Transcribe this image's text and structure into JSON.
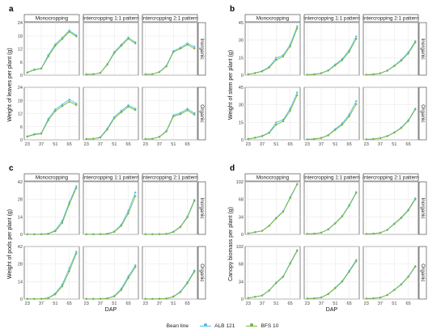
{
  "legend": {
    "title": "Bean line",
    "items": [
      {
        "name": "ALB 121",
        "color": "#4fc3e0"
      },
      {
        "name": "BFS 10",
        "color": "#7cb342"
      }
    ]
  },
  "chart_data": [
    {
      "panel": "a",
      "type": "line",
      "columns": [
        "Monocropping",
        "Intercropping 1:1 pattern",
        "Intercropping 2:1 pattern"
      ],
      "rows": [
        "Inorganic",
        "Organic"
      ],
      "ylabel": "Weight of leaves per plant (g)",
      "xlabel": "",
      "x": [
        23,
        30,
        37,
        44,
        51,
        58,
        65,
        72
      ],
      "xticks": [
        23,
        37,
        51,
        65
      ],
      "ylim": [
        0,
        24
      ],
      "yticks": [
        0,
        6,
        12,
        18,
        24
      ],
      "data": [
        [
          {
            "ALB 121": [
              1.3,
              2.6,
              3.1,
              9.2,
              14.1,
              17.1,
              20.4,
              18.2
            ],
            "BFS 10": [
              1.1,
              2.4,
              3.0,
              8.5,
              13.4,
              16.5,
              19.8,
              17.7
            ]
          },
          {
            "ALB 121": [
              0.4,
              0.5,
              1.1,
              5.1,
              10.6,
              14.0,
              17.2,
              15.0
            ],
            "BFS 10": [
              0.4,
              0.5,
              1.0,
              4.8,
              10.1,
              13.4,
              16.6,
              14.5
            ]
          },
          {
            "ALB 121": [
              0.4,
              0.5,
              1.5,
              4.3,
              11.0,
              12.6,
              14.5,
              13.0
            ],
            "BFS 10": [
              0.4,
              0.5,
              1.4,
              4.0,
              10.6,
              12.1,
              13.9,
              12.2
            ]
          }
        ],
        [
          {
            "ALB 121": [
              1.6,
              2.6,
              3.0,
              9.6,
              13.9,
              16.1,
              18.4,
              16.6
            ],
            "BFS 10": [
              1.4,
              2.4,
              2.8,
              8.9,
              13.1,
              15.4,
              17.4,
              15.9
            ]
          },
          {
            "ALB 121": [
              0.4,
              0.5,
              1.2,
              5.2,
              10.4,
              13.3,
              15.8,
              14.2
            ],
            "BFS 10": [
              0.4,
              0.5,
              1.0,
              4.7,
              9.9,
              12.6,
              15.1,
              13.6
            ]
          },
          {
            "ALB 121": [
              0.4,
              0.5,
              1.4,
              4.1,
              11.2,
              12.3,
              14.2,
              12.2
            ],
            "BFS 10": [
              0.4,
              0.5,
              1.3,
              3.8,
              10.7,
              11.7,
              13.5,
              11.5
            ]
          }
        ]
      ]
    },
    {
      "panel": "b",
      "type": "line",
      "columns": [
        "Monocropping",
        "Intercropping 1:1 pattern",
        "Intercropping 2:1 pattern"
      ],
      "rows": [
        "Inorganic",
        "Organic"
      ],
      "ylabel": "Weight of stem per plant (g)",
      "xlabel": "",
      "x": [
        23,
        30,
        37,
        44,
        51,
        58,
        65,
        72
      ],
      "xticks": [
        23,
        37,
        51,
        65
      ],
      "ylim": [
        0,
        45
      ],
      "yticks": [
        0,
        15,
        30,
        45
      ],
      "data": [
        [
          {
            "ALB 121": [
              0.8,
              1.9,
              3.6,
              7.1,
              14.8,
              17.1,
              26.1,
              41.8
            ],
            "BFS 10": [
              0.7,
              1.7,
              3.2,
              6.5,
              13.1,
              16.0,
              24.6,
              40.1
            ]
          },
          {
            "ALB 121": [
              0.4,
              0.8,
              1.8,
              4.2,
              9.1,
              13.9,
              21.4,
              33.2
            ],
            "BFS 10": [
              0.4,
              0.7,
              1.6,
              3.9,
              8.4,
              12.8,
              20.1,
              31.1
            ]
          },
          {
            "ALB 121": [
              0.4,
              0.7,
              1.7,
              4.0,
              8.2,
              13.2,
              19.6,
              29.1
            ],
            "BFS 10": [
              0.4,
              0.7,
              1.6,
              3.8,
              7.8,
              12.4,
              18.5,
              28.0
            ]
          }
        ],
        [
          {
            "ALB 121": [
              0.8,
              1.9,
              3.4,
              6.3,
              14.9,
              17.2,
              26.7,
              40.5
            ],
            "BFS 10": [
              0.7,
              1.7,
              3.1,
              5.9,
              13.0,
              15.9,
              24.9,
              38.2
            ]
          },
          {
            "ALB 121": [
              0.4,
              0.8,
              1.7,
              4.1,
              9.2,
              14.1,
              21.8,
              33.2
            ],
            "BFS 10": [
              0.4,
              0.7,
              1.5,
              3.8,
              8.5,
              12.9,
              20.1,
              30.6
            ]
          },
          {
            "ALB 121": [
              0.4,
              0.7,
              1.5,
              3.3,
              6.4,
              10.6,
              16.8,
              26.7
            ],
            "BFS 10": [
              0.4,
              0.7,
              1.4,
              3.1,
              6.1,
              10.1,
              16.2,
              26.0
            ]
          }
        ]
      ]
    },
    {
      "panel": "c",
      "type": "line",
      "columns": [
        "Monocropping",
        "Intercropping 1:1 pattern",
        "Intercropping 2:1 pattern"
      ],
      "rows": [
        "Inorganic",
        "Organic"
      ],
      "ylabel": "Weight of pods per plant (g)",
      "xlabel": "DAP",
      "x": [
        23,
        30,
        37,
        44,
        51,
        58,
        65,
        72
      ],
      "xticks": [
        23,
        37,
        51,
        65
      ],
      "ylim": [
        0,
        42
      ],
      "yticks": [
        0,
        14,
        28,
        42
      ],
      "data": [
        [
          {
            "ALB 121": [
              0.1,
              0.1,
              0.2,
              0.6,
              3.2,
              10.9,
              25.6,
              38.5
            ],
            "BFS 10": [
              0.1,
              0.1,
              0.2,
              0.5,
              2.5,
              9.2,
              24.1,
              37.0
            ]
          },
          {
            "ALB 121": [
              0.1,
              0.1,
              0.2,
              0.5,
              2.4,
              7.9,
              18.9,
              33.5
            ],
            "BFS 10": [
              0.1,
              0.1,
              0.2,
              0.4,
              2.0,
              6.9,
              16.8,
              30.6
            ]
          },
          {
            "ALB 121": [
              0.1,
              0.1,
              0.2,
              0.4,
              2.2,
              6.3,
              14.3,
              27.5
            ],
            "BFS 10": [
              0.1,
              0.1,
              0.2,
              0.4,
              1.9,
              5.9,
              13.6,
              26.7
            ]
          }
        ],
        [
          {
            "ALB 121": [
              0.1,
              0.1,
              0.2,
              0.9,
              4.5,
              11.6,
              24.7,
              37.8
            ],
            "BFS 10": [
              0.1,
              0.1,
              0.2,
              0.7,
              3.8,
              10.2,
              22.3,
              36.4
            ]
          },
          {
            "ALB 121": [
              0.1,
              0.1,
              0.2,
              0.6,
              2.5,
              8.4,
              18.2,
              26.9
            ],
            "BFS 10": [
              0.1,
              0.1,
              0.2,
              0.5,
              2.1,
              7.2,
              16.8,
              25.6
            ]
          },
          {
            "ALB 121": [
              0.1,
              0.1,
              0.2,
              0.4,
              2.1,
              5.9,
              13.4,
              22.8
            ],
            "BFS 10": [
              0.1,
              0.1,
              0.2,
              0.4,
              1.8,
              5.5,
              12.7,
              21.9
            ]
          }
        ]
      ]
    },
    {
      "panel": "d",
      "type": "line",
      "columns": [
        "Monocropping",
        "Intercropping 1:1 pattern",
        "Intercropping 2:1 pattern"
      ],
      "rows": [
        "Inorganic",
        "Organic"
      ],
      "ylabel": "Canopy biomass per plant (g)",
      "xlabel": "DAP",
      "x": [
        23,
        30,
        37,
        44,
        51,
        58,
        65,
        72
      ],
      "xticks": [
        23,
        37,
        51,
        65
      ],
      "ylim": [
        0,
        102
      ],
      "yticks": [
        0,
        34,
        68,
        102
      ],
      "data": [
        [
          {
            "ALB 121": [
              2.0,
              4.5,
              7.0,
              17.0,
              32.0,
              45.0,
              72.0,
              98.0
            ],
            "BFS 10": [
              1.9,
              4.3,
              6.8,
              16.5,
              31.0,
              44.0,
              70.5,
              97.0
            ]
          },
          {
            "ALB 121": [
              1.0,
              1.5,
              3.5,
              10.0,
              22.0,
              36.0,
              57.0,
              82.0
            ],
            "BFS 10": [
              0.9,
              1.4,
              3.3,
              9.6,
              21.2,
              34.8,
              55.5,
              80.5
            ]
          },
          {
            "ALB 121": [
              1.0,
              1.5,
              3.3,
              9.0,
              21.0,
              33.0,
              48.0,
              70.0
            ],
            "BFS 10": [
              0.9,
              1.4,
              3.1,
              8.6,
              20.2,
              31.8,
              46.5,
              68.0
            ]
          }
        ],
        [
          {
            "ALB 121": [
              2.0,
              4.5,
              7.0,
              17.0,
              32.0,
              44.0,
              70.0,
              95.0
            ],
            "BFS 10": [
              1.9,
              4.3,
              6.8,
              16.4,
              31.0,
              43.0,
              68.5,
              93.5
            ]
          },
          {
            "ALB 121": [
              1.0,
              1.5,
              3.3,
              10.0,
              22.0,
              35.0,
              55.0,
              76.0
            ],
            "BFS 10": [
              0.9,
              1.4,
              3.1,
              9.5,
              21.0,
              33.8,
              53.2,
              73.5
            ]
          },
          {
            "ALB 121": [
              1.0,
              1.5,
              3.0,
              8.0,
              18.0,
              29.0,
              44.0,
              64.0
            ],
            "BFS 10": [
              0.9,
              1.4,
              2.9,
              7.7,
              17.4,
              28.2,
              43.0,
              62.5
            ]
          }
        ]
      ]
    }
  ]
}
